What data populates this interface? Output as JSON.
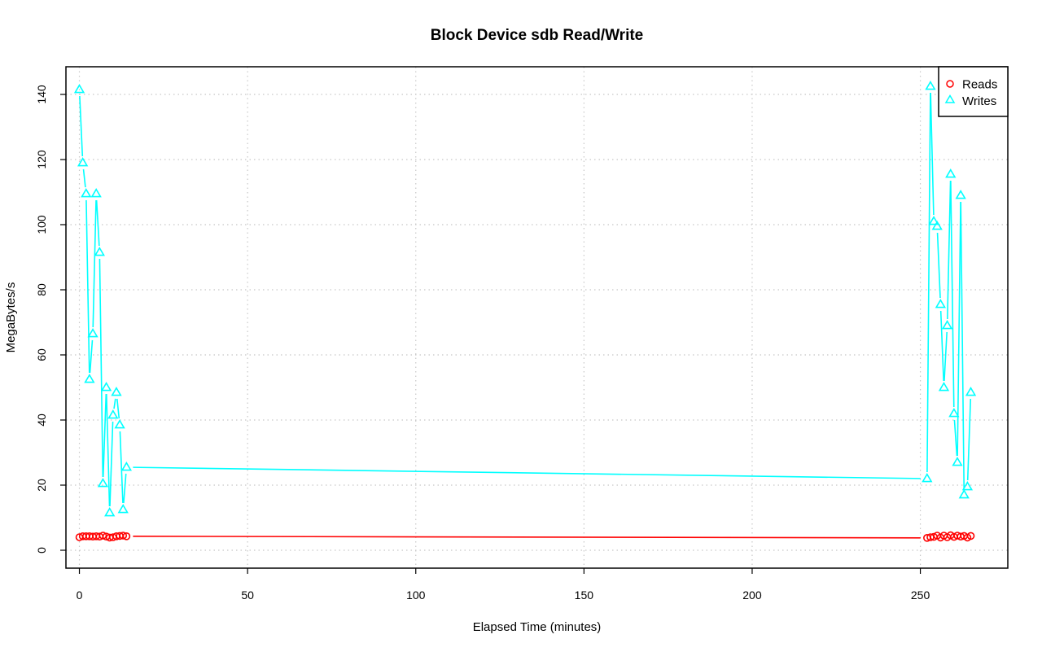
{
  "chart_data": {
    "type": "line",
    "title": "Block Device sdb Read/Write",
    "xlabel": "Elapsed Time (minutes)",
    "ylabel": "MegaBytes/s",
    "xlim": [
      -4,
      276
    ],
    "ylim": [
      -5.5,
      148.5
    ],
    "xticks": [
      0,
      50,
      100,
      150,
      200,
      250
    ],
    "yticks": [
      0,
      20,
      40,
      60,
      80,
      100,
      120,
      140
    ],
    "grid": true,
    "grid_style": "dotted",
    "legend_position": "top-right",
    "series": [
      {
        "name": "Reads",
        "color": "#ff0000",
        "marker": "circle",
        "x": [
          0,
          1,
          2,
          3,
          4,
          5,
          6,
          7,
          8,
          9,
          10,
          11,
          12,
          13,
          14,
          252,
          253,
          254,
          255,
          256,
          257,
          258,
          259,
          260,
          261,
          262,
          263,
          264,
          265
        ],
        "y": [
          4,
          4.3,
          4.3,
          4.3,
          4.2,
          4.3,
          4.2,
          4.5,
          4.2,
          3.9,
          4,
          4.3,
          4.4,
          4.5,
          4.3,
          3.8,
          4,
          4.1,
          4.5,
          3.9,
          4.5,
          4,
          4.6,
          4.1,
          4.5,
          4.2,
          4.4,
          3.9,
          4.4
        ]
      },
      {
        "name": "Writes",
        "color": "#00ffff",
        "marker": "triangle",
        "x": [
          0,
          1,
          2,
          3,
          4,
          5,
          6,
          7,
          8,
          9,
          10,
          11,
          12,
          13,
          14,
          252,
          253,
          254,
          255,
          256,
          257,
          258,
          259,
          260,
          261,
          262,
          263,
          264,
          265
        ],
        "y": [
          141.5,
          119,
          109.5,
          52.5,
          66.5,
          109.5,
          91.5,
          20.5,
          50,
          11.5,
          41.5,
          48.5,
          38.5,
          12.5,
          25.5,
          22,
          142.5,
          101,
          99.5,
          75.5,
          50,
          69,
          115.5,
          42,
          27,
          109,
          17,
          19.5,
          48.5
        ]
      }
    ]
  }
}
